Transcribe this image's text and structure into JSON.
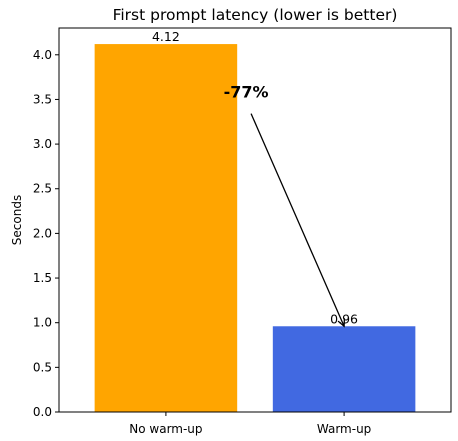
{
  "chart_data": {
    "type": "bar",
    "title": "First prompt latency (lower is better)",
    "xlabel": "",
    "ylabel": "Seconds",
    "categories": [
      "No warm-up",
      "Warm-up"
    ],
    "values": [
      4.12,
      0.96
    ],
    "value_labels": [
      "4.12",
      "0.96"
    ],
    "colors": [
      "#FFA500",
      "#4169E1"
    ],
    "ylim": [
      0,
      4.3
    ],
    "yticks": [
      0.0,
      0.5,
      1.0,
      1.5,
      2.0,
      2.5,
      3.0,
      3.5,
      4.0
    ],
    "ytick_labels": [
      "0.0",
      "0.5",
      "1.0",
      "1.5",
      "2.0",
      "2.5",
      "3.0",
      "3.5",
      "4.0"
    ],
    "grid": false,
    "annotation": {
      "text": "-77%",
      "text_at": [
        0.45,
        3.52
      ],
      "arrow_to": [
        1.0,
        0.96
      ]
    }
  }
}
